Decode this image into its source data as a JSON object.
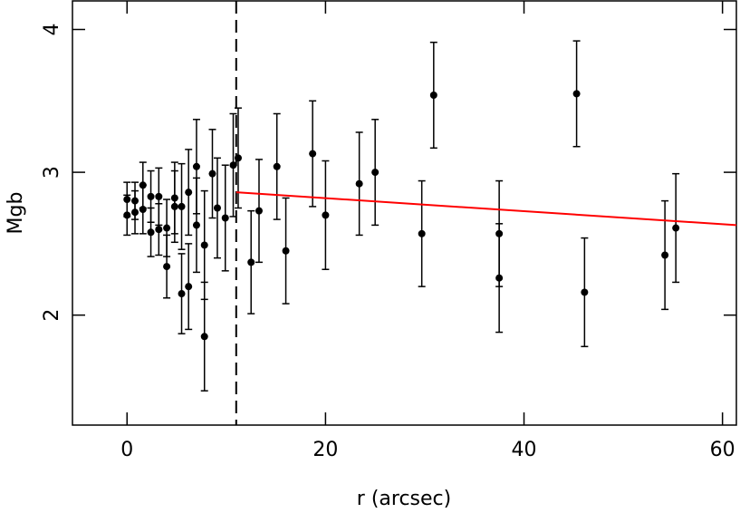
{
  "chart_data": {
    "type": "scatter",
    "x_label": "r (arcsec)",
    "y_label": "Mgb",
    "x": [
      0.0,
      0.0,
      0.8,
      0.8,
      1.6,
      1.6,
      2.4,
      2.4,
      3.2,
      3.2,
      4.0,
      4.0,
      4.8,
      4.8,
      5.5,
      5.5,
      6.2,
      6.2,
      7.0,
      7.0,
      7.8,
      7.8,
      8.6,
      9.1,
      9.9,
      10.7,
      11.2,
      12.5,
      13.3,
      15.1,
      16.0,
      18.7,
      20.0,
      23.4,
      25.0,
      29.7,
      30.9,
      37.5,
      37.5,
      45.3,
      46.1,
      54.2,
      55.3
    ],
    "values": [
      2.81,
      2.7,
      2.8,
      2.72,
      2.91,
      2.74,
      2.83,
      2.58,
      2.83,
      2.6,
      2.61,
      2.34,
      2.82,
      2.76,
      2.76,
      2.15,
      2.86,
      2.2,
      3.04,
      2.63,
      2.49,
      1.85,
      2.99,
      2.75,
      2.68,
      3.05,
      3.1,
      2.37,
      2.73,
      3.04,
      2.45,
      3.13,
      2.7,
      2.92,
      3.0,
      2.57,
      3.54,
      2.57,
      2.26,
      3.55,
      2.16,
      2.42,
      2.61
    ],
    "errors": [
      0.12,
      0.14,
      0.13,
      0.15,
      0.16,
      0.17,
      0.18,
      0.17,
      0.2,
      0.18,
      0.2,
      0.22,
      0.25,
      0.25,
      0.3,
      0.28,
      0.3,
      0.3,
      0.33,
      0.33,
      0.38,
      0.38,
      0.31,
      0.35,
      0.37,
      0.36,
      0.35,
      0.36,
      0.36,
      0.37,
      0.37,
      0.37,
      0.38,
      0.36,
      0.37,
      0.37,
      0.37,
      0.37,
      0.38,
      0.37,
      0.38,
      0.38,
      0.38
    ],
    "color": "#000000",
    "fit": {
      "x": [
        11,
        61.4
      ],
      "y": [
        2.86,
        2.63
      ],
      "color": "#ff0000"
    },
    "vline": 11,
    "xlim": [
      -5.5,
      61.4
    ],
    "ylim": [
      1.23,
      4.2
    ],
    "xticks": [
      0,
      20,
      40,
      60
    ],
    "yticks": [
      2,
      3,
      4
    ]
  }
}
